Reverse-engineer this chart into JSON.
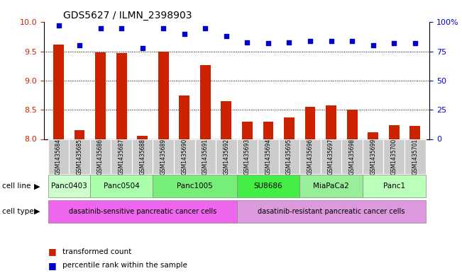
{
  "title": "GDS5627 / ILMN_2398903",
  "samples": [
    "GSM1435684",
    "GSM1435685",
    "GSM1435686",
    "GSM1435687",
    "GSM1435688",
    "GSM1435689",
    "GSM1435690",
    "GSM1435691",
    "GSM1435692",
    "GSM1435693",
    "GSM1435694",
    "GSM1435695",
    "GSM1435696",
    "GSM1435697",
    "GSM1435698",
    "GSM1435699",
    "GSM1435700",
    "GSM1435701"
  ],
  "transformed_count": [
    9.62,
    8.15,
    9.48,
    9.47,
    8.05,
    9.5,
    8.74,
    9.27,
    8.65,
    8.3,
    8.3,
    8.37,
    8.55,
    8.58,
    8.5,
    8.12,
    8.24,
    8.22
  ],
  "percentile_rank": [
    97,
    80,
    95,
    95,
    78,
    95,
    90,
    95,
    88,
    83,
    82,
    83,
    84,
    84,
    84,
    80,
    82,
    82
  ],
  "ylim_left": [
    8.0,
    10.0
  ],
  "ylim_right": [
    0,
    100
  ],
  "yticks_left": [
    8.0,
    8.5,
    9.0,
    9.5,
    10.0
  ],
  "yticks_right": [
    0,
    25,
    50,
    75,
    100
  ],
  "ytick_right_labels": [
    "0",
    "25",
    "50",
    "75",
    "100%"
  ],
  "bar_color": "#CC2200",
  "dot_color": "#0000CC",
  "cell_lines_order": [
    "Panc0403",
    "Panc0504",
    "Panc1005",
    "SU8686",
    "MiaPaCa2",
    "Panc1"
  ],
  "cell_lines": {
    "Panc0403": [
      0,
      1
    ],
    "Panc0504": [
      2,
      3,
      4
    ],
    "Panc1005": [
      5,
      6,
      7,
      8
    ],
    "SU8686": [
      9,
      10,
      11
    ],
    "MiaPaCa2": [
      12,
      13,
      14
    ],
    "Panc1": [
      15,
      16,
      17
    ]
  },
  "cell_line_colors": {
    "Panc0403": "#CCFFCC",
    "Panc0504": "#AAFFAA",
    "Panc1005": "#77EE77",
    "SU8686": "#44EE44",
    "MiaPaCa2": "#99EE99",
    "Panc1": "#BBFFBB"
  },
  "sample_bg_color": "#CCCCCC",
  "sensitive_range": [
    0,
    8
  ],
  "resistant_range": [
    9,
    17
  ],
  "sensitive_color": "#EE66EE",
  "resistant_color": "#DD99DD",
  "sensitive_label": "dasatinib-sensitive pancreatic cancer cells",
  "resistant_label": "dasatinib-resistant pancreatic cancer cells",
  "legend_items": [
    {
      "label": "transformed count",
      "color": "#CC2200"
    },
    {
      "label": "percentile rank within the sample",
      "color": "#0000CC"
    }
  ],
  "bg_color": "white",
  "bar_width": 0.5
}
